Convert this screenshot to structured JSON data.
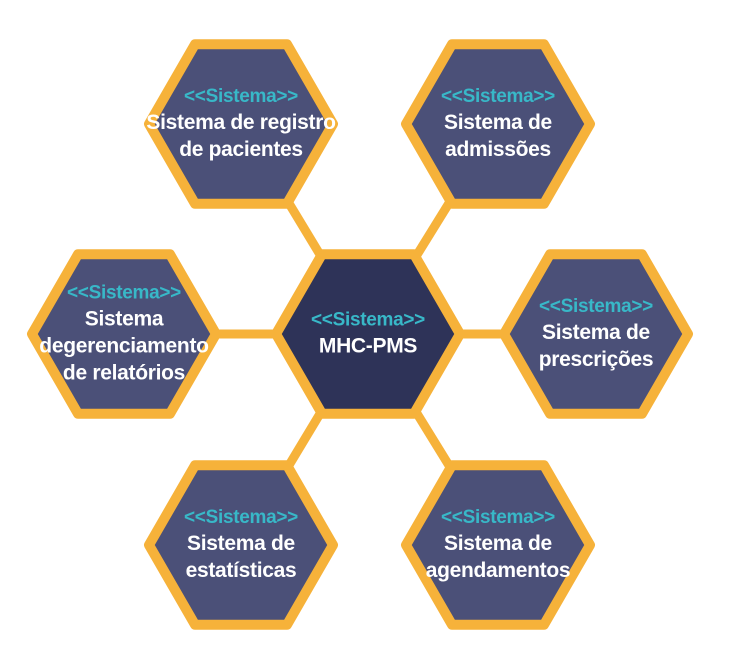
{
  "colors": {
    "border": "#f6b23a",
    "connector": "#f6b23a",
    "node_fill": "#4b5078",
    "center_fill": "#2e3358",
    "stereotype": "#38b8c8",
    "text": "#ffffff",
    "background": "#ffffff"
  },
  "center": {
    "stereotype": "<<Sistema>>",
    "lines": [
      "MHC-PMS"
    ]
  },
  "nodes": [
    {
      "id": "registro-pacientes",
      "stereotype": "<<Sistema>>",
      "lines": [
        "Sistema de registro",
        "de pacientes"
      ]
    },
    {
      "id": "admissoes",
      "stereotype": "<<Sistema>>",
      "lines": [
        "Sistema de",
        "admissões"
      ]
    },
    {
      "id": "gerenciamento-relatorios",
      "stereotype": "<<Sistema>>",
      "lines": [
        "Sistema",
        "degerenciamento",
        "de relatórios"
      ]
    },
    {
      "id": "prescricoes",
      "stereotype": "<<Sistema>>",
      "lines": [
        "Sistema de",
        "prescrições"
      ]
    },
    {
      "id": "estatisticas",
      "stereotype": "<<Sistema>>",
      "lines": [
        "Sistema de",
        "estatísticas"
      ]
    },
    {
      "id": "agendamentos",
      "stereotype": "<<Sistema>>",
      "lines": [
        "Sistema de",
        "agendamentos"
      ]
    }
  ]
}
